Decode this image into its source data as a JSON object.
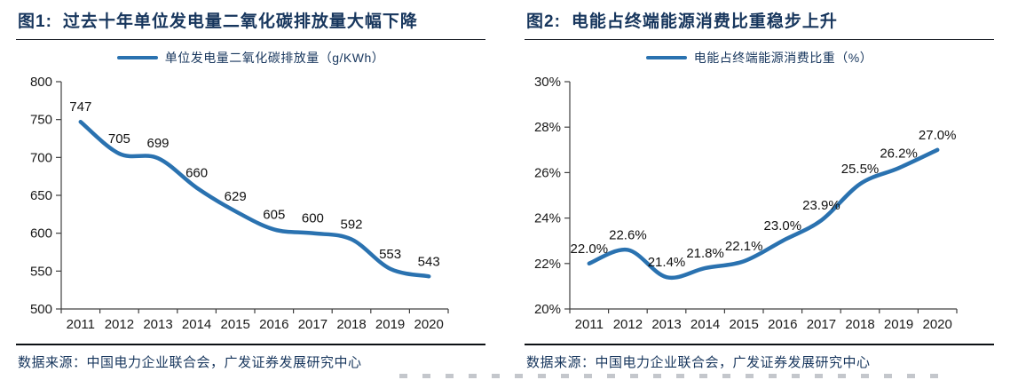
{
  "colors": {
    "line_blue": "#2a72b0",
    "title_navy": "#17365d",
    "axis_gray": "#404040"
  },
  "chart_data": [
    {
      "type": "line",
      "figure_label": "图1:",
      "title": "过去十年单位发电量二氧化碳排放量大幅下降",
      "legend": "单位发电量二氧化碳排放量（g/KWh）",
      "legend_position": "top",
      "categories": [
        "2011",
        "2012",
        "2013",
        "2014",
        "2015",
        "2016",
        "2017",
        "2018",
        "2019",
        "2020"
      ],
      "values": [
        747,
        705,
        699,
        660,
        629,
        605,
        600,
        592,
        553,
        543
      ],
      "point_labels": [
        "747",
        "705",
        "699",
        "660",
        "629",
        "605",
        "600",
        "592",
        "553",
        "543"
      ],
      "xlabel": "",
      "ylabel": "",
      "ylim": [
        500,
        800
      ],
      "ytick_step": 50,
      "ytick_suffix": "",
      "grid": false,
      "line_color": "#2a72b0",
      "source": "数据来源：中国电力企业联合会，广发证券发展研究中心"
    },
    {
      "type": "line",
      "figure_label": "图2:",
      "title": "电能占终端能源消费比重稳步上升",
      "legend": "电能占终端能源消费比重（%）",
      "legend_position": "top",
      "categories": [
        "2011",
        "2012",
        "2013",
        "2014",
        "2015",
        "2016",
        "2017",
        "2018",
        "2019",
        "2020"
      ],
      "values": [
        22.0,
        22.6,
        21.4,
        21.8,
        22.1,
        23.0,
        23.9,
        25.5,
        26.2,
        27.0
      ],
      "point_labels": [
        "22.0%",
        "22.6%",
        "21.4%",
        "21.8%",
        "22.1%",
        "23.0%",
        "23.9%",
        "25.5%",
        "26.2%",
        "27.0%"
      ],
      "xlabel": "",
      "ylabel": "",
      "ylim": [
        20,
        30
      ],
      "ytick_step": 2,
      "ytick_suffix": "%",
      "grid": false,
      "line_color": "#2a72b0",
      "source": "数据来源：中国电力企业联合会，广发证券发展研究中心"
    }
  ]
}
